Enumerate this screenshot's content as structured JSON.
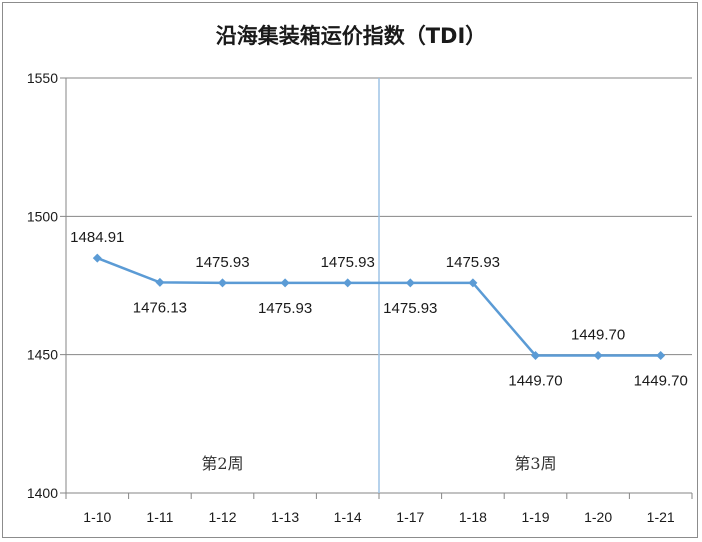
{
  "chart_data": {
    "type": "line",
    "title": "沿海集装箱运价指数（TDI）",
    "categories": [
      "1-10",
      "1-11",
      "1-12",
      "1-13",
      "1-14",
      "1-17",
      "1-18",
      "1-19",
      "1-20",
      "1-21"
    ],
    "values": [
      1484.91,
      1476.13,
      1475.93,
      1475.93,
      1475.93,
      1475.93,
      1475.93,
      1449.7,
      1449.7,
      1449.7
    ],
    "value_labels": [
      "1484.91",
      "1476.13",
      "1475.93",
      "1475.93",
      "1475.93",
      "1475.93",
      "1475.93",
      "1449.70",
      "1449.70",
      "1449.70"
    ],
    "label_side": [
      "above",
      "below",
      "above",
      "below",
      "above",
      "below",
      "above",
      "below",
      "above",
      "below"
    ],
    "ylim": [
      1400,
      1550
    ],
    "yticks": [
      "1400",
      "1450",
      "1500",
      "1550"
    ],
    "grid": true,
    "xlabel": "",
    "ylabel": "",
    "week_labels": [
      "第2周",
      "第3周"
    ],
    "line_color": "#5b9bd5",
    "divider_color": "#9dc3e6"
  }
}
